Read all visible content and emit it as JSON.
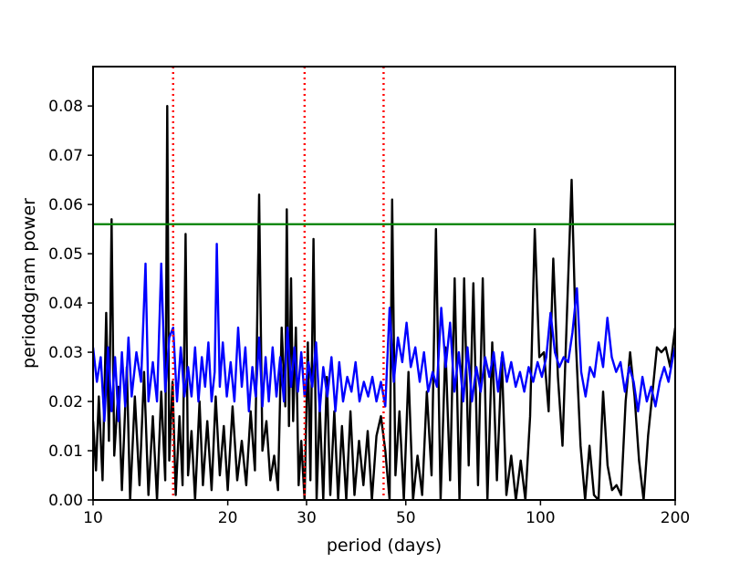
{
  "chart_data": {
    "type": "line",
    "title": "",
    "xlabel": "period (days)",
    "ylabel": "periodogram power",
    "x_scale": "log",
    "xlim": [
      10,
      200
    ],
    "ylim": [
      0,
      0.088
    ],
    "x_ticks": [
      {
        "value": 10,
        "label": "10"
      },
      {
        "value": 20,
        "label": "20"
      },
      {
        "value": 30,
        "label": "30"
      },
      {
        "value": 50,
        "label": "50"
      },
      {
        "value": 100,
        "label": "100"
      },
      {
        "value": 200,
        "label": "200"
      }
    ],
    "y_ticks": [
      {
        "value": 0.0,
        "label": "0.00"
      },
      {
        "value": 0.01,
        "label": "0.01"
      },
      {
        "value": 0.02,
        "label": "0.02"
      },
      {
        "value": 0.03,
        "label": "0.03"
      },
      {
        "value": 0.04,
        "label": "0.04"
      },
      {
        "value": 0.05,
        "label": "0.05"
      },
      {
        "value": 0.06,
        "label": "0.06"
      },
      {
        "value": 0.07,
        "label": "0.07"
      },
      {
        "value": 0.08,
        "label": "0.08"
      }
    ],
    "grid": false,
    "legend": "none",
    "threshold": {
      "y": 0.056,
      "color": "#008000"
    },
    "vlines": {
      "x": [
        15.1,
        29.7,
        44.6
      ],
      "color": "#ff0000",
      "style": "dotted"
    },
    "series": [
      {
        "color": "#000000",
        "points": [
          [
            10.0,
            0.016
          ],
          [
            10.15,
            0.006
          ],
          [
            10.3,
            0.021
          ],
          [
            10.5,
            0.004
          ],
          [
            10.7,
            0.038
          ],
          [
            10.85,
            0.012
          ],
          [
            11.0,
            0.057
          ],
          [
            11.15,
            0.009
          ],
          [
            11.4,
            0.023
          ],
          [
            11.6,
            0.002
          ],
          [
            11.9,
            0.027
          ],
          [
            12.1,
            0.0
          ],
          [
            12.4,
            0.021
          ],
          [
            12.7,
            0.003
          ],
          [
            13.0,
            0.026
          ],
          [
            13.3,
            0.001
          ],
          [
            13.6,
            0.017
          ],
          [
            13.9,
            0.0
          ],
          [
            14.2,
            0.022
          ],
          [
            14.5,
            0.004
          ],
          [
            14.65,
            0.08
          ],
          [
            14.8,
            0.008
          ],
          [
            15.05,
            0.024
          ],
          [
            15.3,
            0.001
          ],
          [
            15.6,
            0.017
          ],
          [
            15.85,
            0.003
          ],
          [
            16.1,
            0.054
          ],
          [
            16.3,
            0.005
          ],
          [
            16.6,
            0.014
          ],
          [
            16.9,
            0.0
          ],
          [
            17.3,
            0.02
          ],
          [
            17.6,
            0.003
          ],
          [
            18.0,
            0.016
          ],
          [
            18.4,
            0.002
          ],
          [
            18.8,
            0.021
          ],
          [
            19.2,
            0.005
          ],
          [
            19.6,
            0.015
          ],
          [
            20.0,
            0.002
          ],
          [
            20.5,
            0.019
          ],
          [
            21.0,
            0.004
          ],
          [
            21.5,
            0.012
          ],
          [
            22.0,
            0.003
          ],
          [
            22.5,
            0.018
          ],
          [
            23.0,
            0.006
          ],
          [
            23.5,
            0.062
          ],
          [
            23.9,
            0.01
          ],
          [
            24.4,
            0.016
          ],
          [
            24.9,
            0.004
          ],
          [
            25.4,
            0.009
          ],
          [
            25.9,
            0.002
          ],
          [
            26.4,
            0.035
          ],
          [
            26.9,
            0.019
          ],
          [
            27.1,
            0.059
          ],
          [
            27.4,
            0.015
          ],
          [
            27.7,
            0.045
          ],
          [
            28.0,
            0.016
          ],
          [
            28.4,
            0.035
          ],
          [
            28.8,
            0.003
          ],
          [
            29.2,
            0.012
          ],
          [
            29.7,
            0.0
          ],
          [
            30.2,
            0.032
          ],
          [
            30.6,
            0.004
          ],
          [
            31.1,
            0.053
          ],
          [
            31.6,
            0.0
          ],
          [
            32.1,
            0.019
          ],
          [
            32.7,
            0.0
          ],
          [
            33.3,
            0.025
          ],
          [
            33.9,
            0.001
          ],
          [
            34.6,
            0.018
          ],
          [
            35.3,
            0.0
          ],
          [
            36.0,
            0.015
          ],
          [
            36.8,
            0.0
          ],
          [
            37.6,
            0.018
          ],
          [
            38.4,
            0.001
          ],
          [
            39.3,
            0.012
          ],
          [
            40.2,
            0.003
          ],
          [
            41.1,
            0.014
          ],
          [
            42.0,
            0.0
          ],
          [
            43.0,
            0.013
          ],
          [
            44.0,
            0.017
          ],
          [
            45.0,
            0.01
          ],
          [
            46.0,
            0.0
          ],
          [
            46.6,
            0.061
          ],
          [
            47.4,
            0.005
          ],
          [
            48.4,
            0.018
          ],
          [
            49.5,
            0.0
          ],
          [
            50.7,
            0.026
          ],
          [
            51.9,
            0.0
          ],
          [
            53.1,
            0.009
          ],
          [
            54.4,
            0.001
          ],
          [
            55.7,
            0.022
          ],
          [
            57.1,
            0.005
          ],
          [
            58.4,
            0.055
          ],
          [
            59.8,
            0.0
          ],
          [
            61.3,
            0.031
          ],
          [
            62.8,
            0.004
          ],
          [
            64.3,
            0.045
          ],
          [
            65.9,
            0.0
          ],
          [
            67.5,
            0.045
          ],
          [
            69.1,
            0.007
          ],
          [
            70.8,
            0.044
          ],
          [
            72.5,
            0.003
          ],
          [
            74.3,
            0.045
          ],
          [
            76.1,
            0.0
          ],
          [
            78.0,
            0.032
          ],
          [
            79.9,
            0.004
          ],
          [
            81.9,
            0.029
          ],
          [
            83.9,
            0.001
          ],
          [
            86.0,
            0.009
          ],
          [
            88.1,
            0.0
          ],
          [
            90.3,
            0.008
          ],
          [
            92.5,
            0.0
          ],
          [
            94.8,
            0.017
          ],
          [
            97.1,
            0.055
          ],
          [
            99.4,
            0.029
          ],
          [
            101.8,
            0.03
          ],
          [
            104.3,
            0.018
          ],
          [
            106.8,
            0.049
          ],
          [
            109.4,
            0.025
          ],
          [
            112.0,
            0.011
          ],
          [
            114.7,
            0.039
          ],
          [
            117.4,
            0.065
          ],
          [
            120.1,
            0.031
          ],
          [
            122.9,
            0.011
          ],
          [
            125.8,
            0.0
          ],
          [
            128.7,
            0.011
          ],
          [
            131.7,
            0.001
          ],
          [
            134.8,
            0.0
          ],
          [
            138.0,
            0.022
          ],
          [
            141.2,
            0.007
          ],
          [
            144.5,
            0.002
          ],
          [
            147.9,
            0.003
          ],
          [
            151.4,
            0.001
          ],
          [
            155.0,
            0.02
          ],
          [
            158.6,
            0.03
          ],
          [
            162.3,
            0.021
          ],
          [
            166.1,
            0.008
          ],
          [
            170.0,
            0.0
          ],
          [
            174.0,
            0.013
          ],
          [
            178.0,
            0.022
          ],
          [
            182.1,
            0.031
          ],
          [
            186.3,
            0.03
          ],
          [
            190.6,
            0.031
          ],
          [
            195.0,
            0.027
          ],
          [
            200.0,
            0.035
          ]
        ]
      },
      {
        "color": "#0000ff",
        "points": [
          [
            10.0,
            0.031
          ],
          [
            10.2,
            0.024
          ],
          [
            10.4,
            0.029
          ],
          [
            10.6,
            0.016
          ],
          [
            10.8,
            0.031
          ],
          [
            11.0,
            0.018
          ],
          [
            11.2,
            0.029
          ],
          [
            11.4,
            0.016
          ],
          [
            11.6,
            0.03
          ],
          [
            11.8,
            0.019
          ],
          [
            12.0,
            0.033
          ],
          [
            12.2,
            0.021
          ],
          [
            12.5,
            0.03
          ],
          [
            12.8,
            0.024
          ],
          [
            13.1,
            0.048
          ],
          [
            13.3,
            0.02
          ],
          [
            13.6,
            0.028
          ],
          [
            13.9,
            0.02
          ],
          [
            14.2,
            0.048
          ],
          [
            14.5,
            0.022
          ],
          [
            14.8,
            0.033
          ],
          [
            15.1,
            0.035
          ],
          [
            15.4,
            0.02
          ],
          [
            15.7,
            0.031
          ],
          [
            16.0,
            0.021
          ],
          [
            16.3,
            0.027
          ],
          [
            16.6,
            0.021
          ],
          [
            16.9,
            0.031
          ],
          [
            17.2,
            0.02
          ],
          [
            17.5,
            0.029
          ],
          [
            17.8,
            0.023
          ],
          [
            18.1,
            0.032
          ],
          [
            18.4,
            0.02
          ],
          [
            18.7,
            0.026
          ],
          [
            18.9,
            0.052
          ],
          [
            19.2,
            0.023
          ],
          [
            19.5,
            0.032
          ],
          [
            19.9,
            0.021
          ],
          [
            20.3,
            0.028
          ],
          [
            20.7,
            0.02
          ],
          [
            21.1,
            0.035
          ],
          [
            21.5,
            0.023
          ],
          [
            21.9,
            0.031
          ],
          [
            22.3,
            0.018
          ],
          [
            22.7,
            0.027
          ],
          [
            23.1,
            0.021
          ],
          [
            23.5,
            0.033
          ],
          [
            23.9,
            0.019
          ],
          [
            24.3,
            0.029
          ],
          [
            24.7,
            0.02
          ],
          [
            25.2,
            0.031
          ],
          [
            25.7,
            0.021
          ],
          [
            26.2,
            0.029
          ],
          [
            26.7,
            0.02
          ],
          [
            27.2,
            0.035
          ],
          [
            27.7,
            0.023
          ],
          [
            28.2,
            0.031
          ],
          [
            28.7,
            0.022
          ],
          [
            29.2,
            0.03
          ],
          [
            29.7,
            0.021
          ],
          [
            30.3,
            0.028
          ],
          [
            30.9,
            0.023
          ],
          [
            31.5,
            0.032
          ],
          [
            32.1,
            0.018
          ],
          [
            32.7,
            0.027
          ],
          [
            33.4,
            0.021
          ],
          [
            34.1,
            0.029
          ],
          [
            34.8,
            0.018
          ],
          [
            35.5,
            0.028
          ],
          [
            36.2,
            0.02
          ],
          [
            37.0,
            0.025
          ],
          [
            37.8,
            0.022
          ],
          [
            38.6,
            0.028
          ],
          [
            39.4,
            0.02
          ],
          [
            40.3,
            0.024
          ],
          [
            41.2,
            0.021
          ],
          [
            42.1,
            0.025
          ],
          [
            43.0,
            0.02
          ],
          [
            44.0,
            0.024
          ],
          [
            45.0,
            0.019
          ],
          [
            46.0,
            0.039
          ],
          [
            47.0,
            0.024
          ],
          [
            48.0,
            0.033
          ],
          [
            49.1,
            0.028
          ],
          [
            50.2,
            0.036
          ],
          [
            51.3,
            0.027
          ],
          [
            52.5,
            0.031
          ],
          [
            53.7,
            0.024
          ],
          [
            54.9,
            0.03
          ],
          [
            56.1,
            0.022
          ],
          [
            57.4,
            0.026
          ],
          [
            58.7,
            0.023
          ],
          [
            60.0,
            0.039
          ],
          [
            61.4,
            0.027
          ],
          [
            62.8,
            0.036
          ],
          [
            64.2,
            0.022
          ],
          [
            65.7,
            0.03
          ],
          [
            67.2,
            0.02
          ],
          [
            68.7,
            0.031
          ],
          [
            70.3,
            0.02
          ],
          [
            71.9,
            0.027
          ],
          [
            73.5,
            0.022
          ],
          [
            75.2,
            0.029
          ],
          [
            76.9,
            0.025
          ],
          [
            78.6,
            0.03
          ],
          [
            80.4,
            0.022
          ],
          [
            82.2,
            0.03
          ],
          [
            84.1,
            0.024
          ],
          [
            86.0,
            0.028
          ],
          [
            88.0,
            0.023
          ],
          [
            90.0,
            0.026
          ],
          [
            92.0,
            0.022
          ],
          [
            94.1,
            0.027
          ],
          [
            96.3,
            0.024
          ],
          [
            98.5,
            0.028
          ],
          [
            100.7,
            0.025
          ],
          [
            103.0,
            0.029
          ],
          [
            105.3,
            0.038
          ],
          [
            107.7,
            0.03
          ],
          [
            110.2,
            0.027
          ],
          [
            112.7,
            0.029
          ],
          [
            115.3,
            0.028
          ],
          [
            117.9,
            0.034
          ],
          [
            120.6,
            0.043
          ],
          [
            123.3,
            0.026
          ],
          [
            126.1,
            0.021
          ],
          [
            129.0,
            0.027
          ],
          [
            131.9,
            0.025
          ],
          [
            134.9,
            0.032
          ],
          [
            138.0,
            0.027
          ],
          [
            141.1,
            0.037
          ],
          [
            144.3,
            0.029
          ],
          [
            147.6,
            0.026
          ],
          [
            151.0,
            0.028
          ],
          [
            154.4,
            0.022
          ],
          [
            157.9,
            0.027
          ],
          [
            161.5,
            0.024
          ],
          [
            165.2,
            0.018
          ],
          [
            169.0,
            0.025
          ],
          [
            172.8,
            0.02
          ],
          [
            176.7,
            0.023
          ],
          [
            180.7,
            0.019
          ],
          [
            184.8,
            0.024
          ],
          [
            189.0,
            0.027
          ],
          [
            193.3,
            0.024
          ],
          [
            197.7,
            0.029
          ],
          [
            200.0,
            0.031
          ]
        ]
      }
    ]
  }
}
